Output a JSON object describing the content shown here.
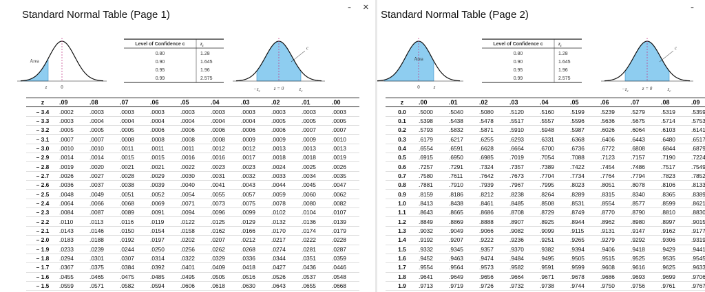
{
  "windows": [
    {
      "title": "Standard Normal Table (Page 1)",
      "controls": [
        "-",
        "×"
      ],
      "figure_left": {
        "area": "Area",
        "z": "z",
        "zero": "0"
      },
      "confidence_table": {
        "header": [
          "Level of Confidence c",
          {
            "main": "z",
            "sub": "c"
          }
        ],
        "rows": [
          [
            "0.80",
            "1.28"
          ],
          [
            "0.90",
            "1.645"
          ],
          [
            "0.95",
            "1.96"
          ],
          [
            "0.99",
            "2.575"
          ]
        ]
      },
      "figure_right": {
        "c": "c",
        "neg_zc": {
          "main": "−z",
          "sub": "c"
        },
        "center": "z = 0",
        "zc": {
          "main": "z",
          "sub": "c"
        }
      },
      "table": {
        "header": [
          "z",
          ".09",
          ".08",
          ".07",
          ".06",
          ".05",
          ".04",
          ".03",
          ".02",
          ".01",
          ".00"
        ],
        "rows": [
          [
            "– 3.4",
            ".0002",
            ".0003",
            ".0003",
            ".0003",
            ".0003",
            ".0003",
            ".0003",
            ".0003",
            ".0003",
            ".0003"
          ],
          [
            "– 3.3",
            ".0003",
            ".0004",
            ".0004",
            ".0004",
            ".0004",
            ".0004",
            ".0004",
            ".0005",
            ".0005",
            ".0005"
          ],
          [
            "– 3.2",
            ".0005",
            ".0005",
            ".0005",
            ".0006",
            ".0006",
            ".0006",
            ".0006",
            ".0006",
            ".0007",
            ".0007"
          ],
          [
            "– 3.1",
            ".0007",
            ".0007",
            ".0008",
            ".0008",
            ".0008",
            ".0008",
            ".0009",
            ".0009",
            ".0009",
            ".0010"
          ],
          [
            "– 3.0",
            ".0010",
            ".0010",
            ".0011",
            ".0011",
            ".0011",
            ".0012",
            ".0012",
            ".0013",
            ".0013",
            ".0013"
          ],
          [
            "– 2.9",
            ".0014",
            ".0014",
            ".0015",
            ".0015",
            ".0016",
            ".0016",
            ".0017",
            ".0018",
            ".0018",
            ".0019"
          ],
          [
            "– 2.8",
            ".0019",
            ".0020",
            ".0021",
            ".0021",
            ".0022",
            ".0023",
            ".0023",
            ".0024",
            ".0025",
            ".0026"
          ],
          [
            "– 2.7",
            ".0026",
            ".0027",
            ".0028",
            ".0029",
            ".0030",
            ".0031",
            ".0032",
            ".0033",
            ".0034",
            ".0035"
          ],
          [
            "– 2.6",
            ".0036",
            ".0037",
            ".0038",
            ".0039",
            ".0040",
            ".0041",
            ".0043",
            ".0044",
            ".0045",
            ".0047"
          ],
          [
            "– 2.5",
            ".0048",
            ".0049",
            ".0051",
            ".0052",
            ".0054",
            ".0055",
            ".0057",
            ".0059",
            ".0060",
            ".0062"
          ],
          [
            "– 2.4",
            ".0064",
            ".0066",
            ".0068",
            ".0069",
            ".0071",
            ".0073",
            ".0075",
            ".0078",
            ".0080",
            ".0082"
          ],
          [
            "– 2.3",
            ".0084",
            ".0087",
            ".0089",
            ".0091",
            ".0094",
            ".0096",
            ".0099",
            ".0102",
            ".0104",
            ".0107"
          ],
          [
            "– 2.2",
            ".0110",
            ".0113",
            ".0116",
            ".0119",
            ".0122",
            ".0125",
            ".0129",
            ".0132",
            ".0136",
            ".0139"
          ],
          [
            "– 2.1",
            ".0143",
            ".0146",
            ".0150",
            ".0154",
            ".0158",
            ".0162",
            ".0166",
            ".0170",
            ".0174",
            ".0179"
          ],
          [
            "– 2.0",
            ".0183",
            ".0188",
            ".0192",
            ".0197",
            ".0202",
            ".0207",
            ".0212",
            ".0217",
            ".0222",
            ".0228"
          ],
          [
            "– 1.9",
            ".0233",
            ".0239",
            ".0244",
            ".0250",
            ".0256",
            ".0262",
            ".0268",
            ".0274",
            ".0281",
            ".0287"
          ],
          [
            "– 1.8",
            ".0294",
            ".0301",
            ".0307",
            ".0314",
            ".0322",
            ".0329",
            ".0336",
            ".0344",
            ".0351",
            ".0359"
          ],
          [
            "– 1.7",
            ".0367",
            ".0375",
            ".0384",
            ".0392",
            ".0401",
            ".0409",
            ".0418",
            ".0427",
            ".0436",
            ".0446"
          ],
          [
            "– 1.6",
            ".0455",
            ".0465",
            ".0475",
            ".0485",
            ".0495",
            ".0505",
            ".0516",
            ".0526",
            ".0537",
            ".0548"
          ],
          [
            "– 1.5",
            ".0559",
            ".0571",
            ".0582",
            ".0594",
            ".0606",
            ".0618",
            ".0630",
            ".0643",
            ".0655",
            ".0668"
          ]
        ]
      }
    },
    {
      "title": "Standard Normal Table (Page 2)",
      "controls": [
        "-"
      ],
      "figure_left": {
        "area": "Area",
        "z": "z",
        "zero": "0"
      },
      "confidence_table": {
        "header": [
          "Level of Confidence c",
          {
            "main": "z",
            "sub": "c"
          }
        ],
        "rows": [
          [
            "0.80",
            "1.28"
          ],
          [
            "0.90",
            "1.645"
          ],
          [
            "0.95",
            "1.96"
          ],
          [
            "0.99",
            "2.575"
          ]
        ]
      },
      "figure_right": {
        "c": "c",
        "neg_zc": {
          "main": "−z",
          "sub": "c"
        },
        "center": "z = 0",
        "zc": {
          "main": "z",
          "sub": "c"
        }
      },
      "table": {
        "header": [
          "z",
          ".00",
          ".01",
          ".02",
          ".03",
          ".04",
          ".05",
          ".06",
          ".07",
          ".08",
          ".09"
        ],
        "rows": [
          [
            "0.0",
            ".5000",
            ".5040",
            ".5080",
            ".5120",
            ".5160",
            ".5199",
            ".5239",
            ".5279",
            ".5319",
            ".5359"
          ],
          [
            "0.1",
            ".5398",
            ".5438",
            ".5478",
            ".5517",
            ".5557",
            ".5596",
            ".5636",
            ".5675",
            ".5714",
            ".5753"
          ],
          [
            "0.2",
            ".5793",
            ".5832",
            ".5871",
            ".5910",
            ".5948",
            ".5987",
            ".6026",
            ".6064",
            ".6103",
            ".6141"
          ],
          [
            "0.3",
            ".6179",
            ".6217",
            ".6255",
            ".6293",
            ".6331",
            ".6368",
            ".6406",
            ".6443",
            ".6480",
            ".6517"
          ],
          [
            "0.4",
            ".6554",
            ".6591",
            ".6628",
            ".6664",
            ".6700",
            ".6736",
            ".6772",
            ".6808",
            ".6844",
            ".6879"
          ],
          [
            "0.5",
            ".6915",
            ".6950",
            ".6985",
            ".7019",
            ".7054",
            ".7088",
            ".7123",
            ".7157",
            ".7190",
            ".7224"
          ],
          [
            "0.6",
            ".7257",
            ".7291",
            ".7324",
            ".7357",
            ".7389",
            ".7422",
            ".7454",
            ".7486",
            ".7517",
            ".7549"
          ],
          [
            "0.7",
            ".7580",
            ".7611",
            ".7642",
            ".7673",
            ".7704",
            ".7734",
            ".7764",
            ".7794",
            ".7823",
            ".7852"
          ],
          [
            "0.8",
            ".7881",
            ".7910",
            ".7939",
            ".7967",
            ".7995",
            ".8023",
            ".8051",
            ".8078",
            ".8106",
            ".8133"
          ],
          [
            "0.9",
            ".8159",
            ".8186",
            ".8212",
            ".8238",
            ".8264",
            ".8289",
            ".8315",
            ".8340",
            ".8365",
            ".8389"
          ],
          [
            "1.0",
            ".8413",
            ".8438",
            ".8461",
            ".8485",
            ".8508",
            ".8531",
            ".8554",
            ".8577",
            ".8599",
            ".8621"
          ],
          [
            "1.1",
            ".8643",
            ".8665",
            ".8686",
            ".8708",
            ".8729",
            ".8749",
            ".8770",
            ".8790",
            ".8810",
            ".8830"
          ],
          [
            "1.2",
            ".8849",
            ".8869",
            ".8888",
            ".8907",
            ".8925",
            ".8944",
            ".8962",
            ".8980",
            ".8997",
            ".9015"
          ],
          [
            "1.3",
            ".9032",
            ".9049",
            ".9066",
            ".9082",
            ".9099",
            ".9115",
            ".9131",
            ".9147",
            ".9162",
            ".9177"
          ],
          [
            "1.4",
            ".9192",
            ".9207",
            ".9222",
            ".9236",
            ".9251",
            ".9265",
            ".9279",
            ".9292",
            ".9306",
            ".9319"
          ],
          [
            "1.5",
            ".9332",
            ".9345",
            ".9357",
            ".9370",
            ".9382",
            ".9394",
            ".9406",
            ".9418",
            ".9429",
            ".9441"
          ],
          [
            "1.6",
            ".9452",
            ".9463",
            ".9474",
            ".9484",
            ".9495",
            ".9505",
            ".9515",
            ".9525",
            ".9535",
            ".9545"
          ],
          [
            "1.7",
            ".9554",
            ".9564",
            ".9573",
            ".9582",
            ".9591",
            ".9599",
            ".9608",
            ".9616",
            ".9625",
            ".9633"
          ],
          [
            "1.8",
            ".9641",
            ".9649",
            ".9656",
            ".9664",
            ".9671",
            ".9678",
            ".9686",
            ".9693",
            ".9699",
            ".9706"
          ],
          [
            "1.9",
            ".9713",
            ".9719",
            ".9726",
            ".9732",
            ".9738",
            ".9744",
            ".9750",
            ".9756",
            ".9761",
            ".9767"
          ]
        ]
      }
    }
  ]
}
